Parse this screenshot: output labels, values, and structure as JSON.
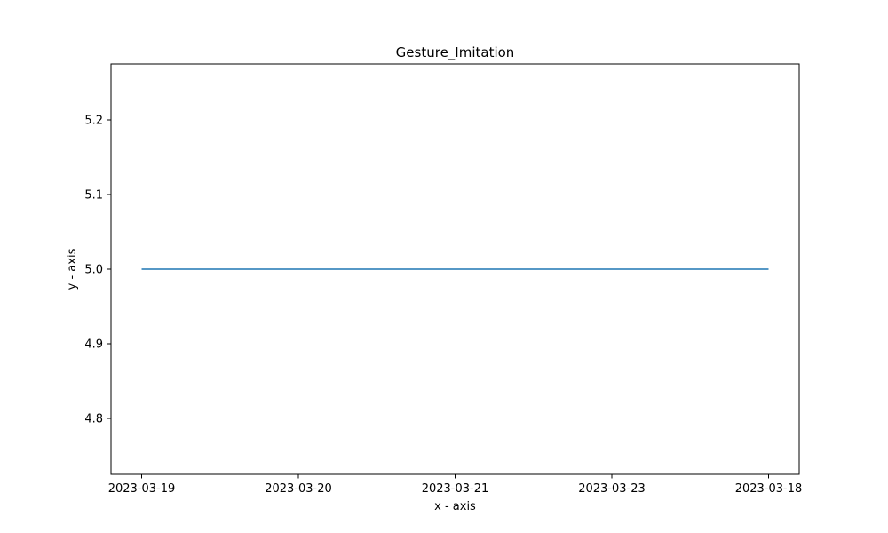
{
  "chart_data": {
    "type": "line",
    "title": "Gesture_Imitation",
    "xlabel": "x - axis",
    "ylabel": "y - axis",
    "categories": [
      "2023-03-19",
      "2023-03-20",
      "2023-03-21",
      "2023-03-23",
      "2023-03-18"
    ],
    "series": [
      {
        "values": [
          5.0,
          5.0,
          5.0,
          5.0,
          5.0
        ],
        "color": "#1f77b4"
      }
    ],
    "ylim": [
      4.725,
      5.275
    ],
    "yticks": [
      4.8,
      4.9,
      5.0,
      5.1,
      5.2
    ],
    "ytick_labels": [
      "4.8",
      "4.9",
      "5.0",
      "5.1",
      "5.2"
    ],
    "grid": false,
    "legend": "none",
    "frame_color": "#000000"
  }
}
